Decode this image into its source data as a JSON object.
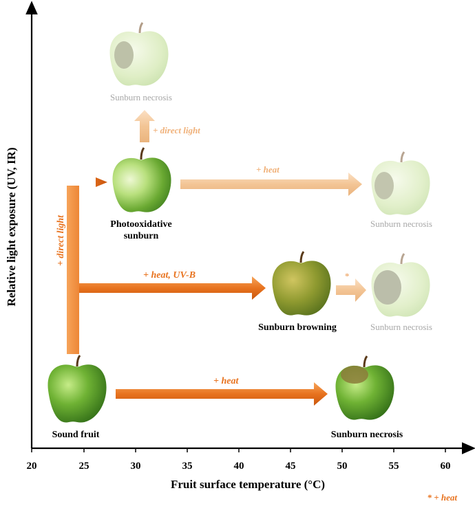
{
  "axes": {
    "x_label": "Fruit surface temperature (°C)",
    "y_label": "Relative light exposure (UV, IR)",
    "x_ticks": [
      "20",
      "25",
      "30",
      "35",
      "40",
      "45",
      "50",
      "55",
      "60"
    ]
  },
  "stages": {
    "sound": "Sound fruit",
    "photo_line1": "Photooxidative",
    "photo_line2": "sunburn",
    "browning": "Sunburn browning",
    "necrosis_top": "Sunburn necrosis",
    "necrosis_mid": "Sunburn necrosis",
    "necrosis_browning": "Sunburn necrosis",
    "necrosis_bottom": "Sunburn necrosis"
  },
  "arrows": {
    "direct_light_vertical": "+ direct light",
    "direct_light_up": "+ direct light",
    "heat_top": "+ heat",
    "heat_uvb": "+ heat, UV-B",
    "star": "*",
    "heat_bottom": "+ heat"
  },
  "footnote": "* + heat",
  "colors": {
    "arrow_strong": "#e8731f",
    "arrow_faded": "#f2c08f",
    "label_orange": "#e8731f",
    "label_faded": "#f0b078",
    "label_gray": "#a8a8a8",
    "apple_green": "#5aa02c",
    "apple_brown": "#8c8a2c"
  }
}
